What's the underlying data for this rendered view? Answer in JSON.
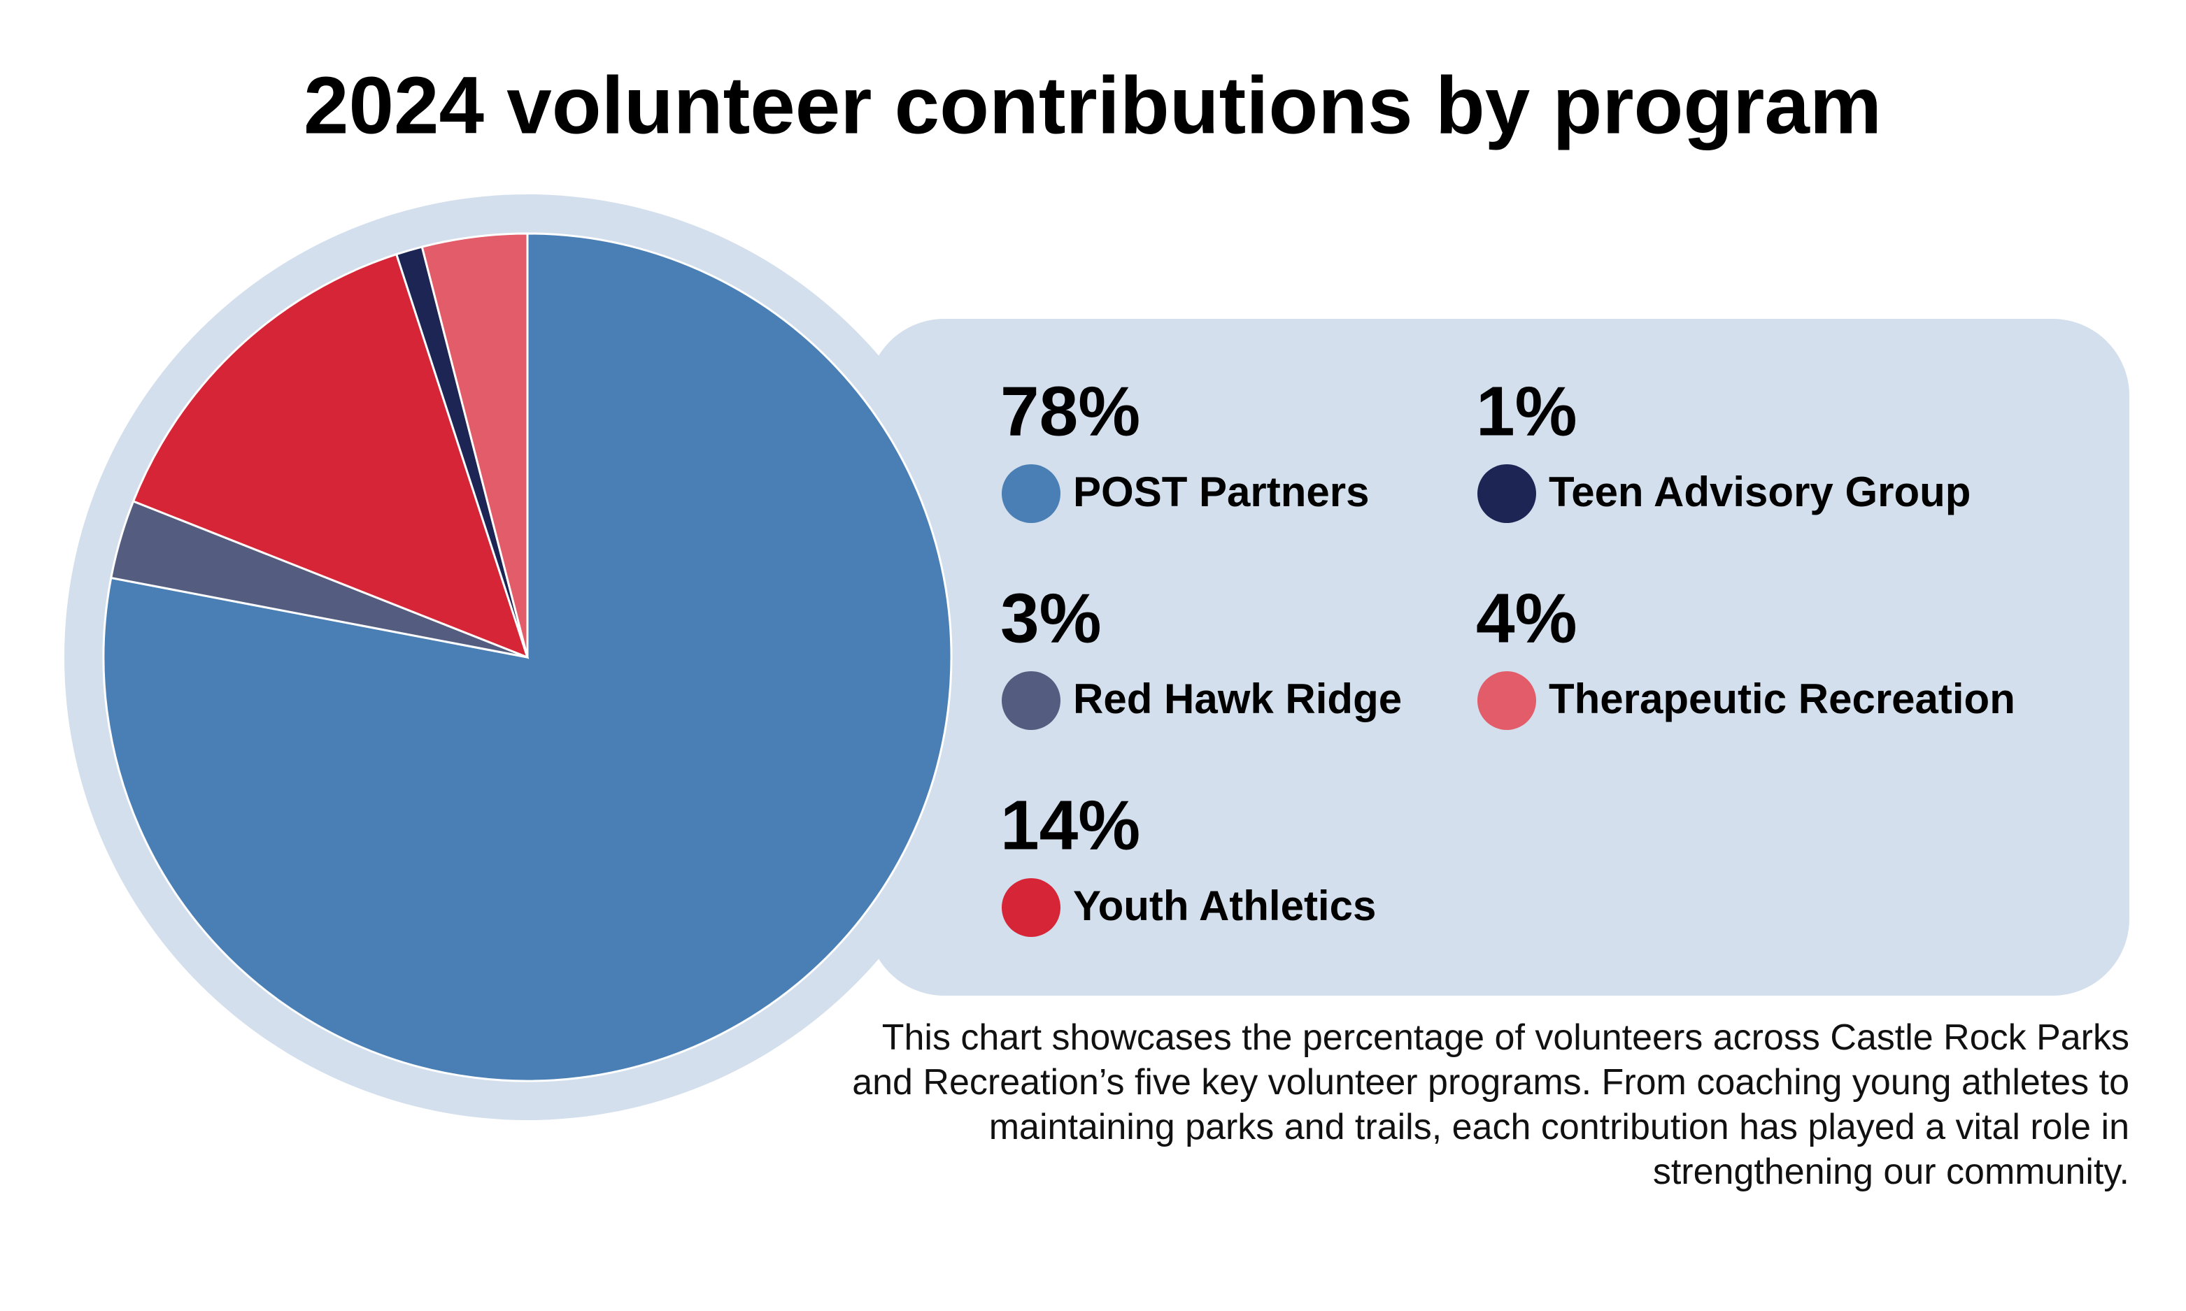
{
  "chart_data": {
    "type": "pie",
    "title": "2024 volunteer contributions by program",
    "categories": [
      "POST Partners",
      "Red Hawk Ridge",
      "Youth Athletics",
      "Teen Advisory Group",
      "Therapeutic Recreation"
    ],
    "values": [
      78,
      3,
      14,
      1,
      4
    ],
    "value_labels": [
      "78%",
      "3%",
      "14%",
      "1%",
      "4%"
    ],
    "colors": [
      "#4a7fb5",
      "#545d80",
      "#d62537",
      "#1c2554",
      "#e25c6a"
    ],
    "description": "This chart showcases the percentage of volunteers across Castle Rock Parks and Recreation’s five key volunteer programs. From coaching young athletes to maintaining parks and trails, each contribution has played a vital role in strengthening our community."
  }
}
